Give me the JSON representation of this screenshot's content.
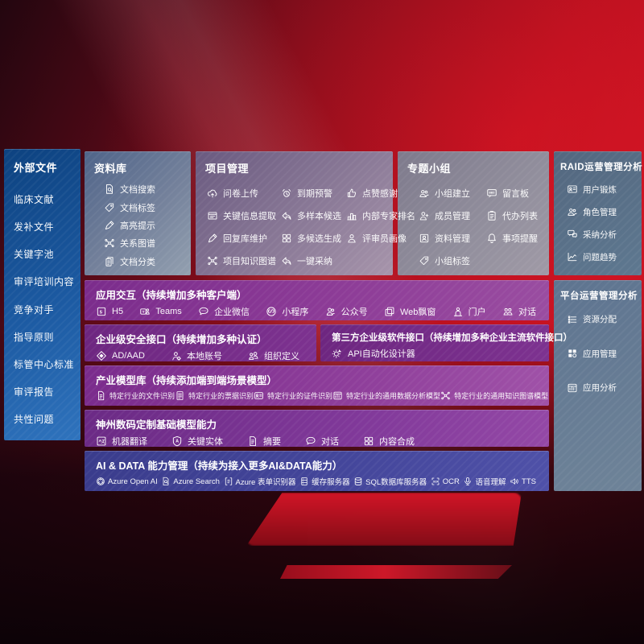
{
  "colors": {
    "background_red": "#b00f1e",
    "sidebar_blue": "#1c5aa2",
    "panel_slate": "#74819b",
    "panel_mauve": "#8d7c99",
    "panel_gray": "#928f9d",
    "panel_steel": "#5e7890",
    "row_purple": "#7b2c8c",
    "row_indigo": "#45479c",
    "text": "#ffffff"
  },
  "sidebar": {
    "title": "外部文件",
    "items": [
      "临床文献",
      "发补文件",
      "关键字池",
      "审评培训内容",
      "竞争对手",
      "指导原则",
      "标管中心标准",
      "审评报告",
      "共性问题"
    ]
  },
  "panels": {
    "repository": {
      "title": "资料库",
      "items": [
        {
          "label": "文档搜索",
          "icon": "doc-search-icon"
        },
        {
          "label": "文档标签",
          "icon": "tag-icon"
        },
        {
          "label": "高亮提示",
          "icon": "highlight-pen-icon"
        },
        {
          "label": "关系图谱",
          "icon": "knowledge-graph-icon"
        },
        {
          "label": "文档分类",
          "icon": "doc-classify-icon"
        }
      ]
    },
    "project": {
      "title": "项目管理",
      "items": [
        {
          "label": "问卷上传",
          "icon": "cloud-upload-icon"
        },
        {
          "label": "关键信息提取",
          "icon": "info-extract-icon"
        },
        {
          "label": "回复库维护",
          "icon": "reply-edit-icon"
        },
        {
          "label": "项目知识图谱",
          "icon": "knowledge-graph-icon"
        },
        {
          "label": "到期预警",
          "icon": "alarm-icon"
        },
        {
          "label": "多样本候选",
          "icon": "multi-sample-icon"
        },
        {
          "label": "多候选生成",
          "icon": "multi-generate-icon"
        },
        {
          "label": "一键采纳",
          "icon": "adopt-icon"
        },
        {
          "label": "点赞感谢",
          "icon": "thumbs-up-icon"
        },
        {
          "label": "内部专家排名",
          "icon": "expert-ranking-icon"
        },
        {
          "label": "评审员画像",
          "icon": "reviewer-profile-icon"
        }
      ]
    },
    "topic_group": {
      "title": "专题小组",
      "items": [
        {
          "label": "小组建立",
          "icon": "group-create-icon"
        },
        {
          "label": "成员管理",
          "icon": "member-manage-icon"
        },
        {
          "label": "资料管理",
          "icon": "data-album-icon"
        },
        {
          "label": "小组标签",
          "icon": "group-tag-icon"
        },
        {
          "label": "留言板",
          "icon": "bbs-icon"
        },
        {
          "label": "代办列表",
          "icon": "todo-list-icon"
        },
        {
          "label": "事项提醒",
          "icon": "reminder-bell-icon"
        }
      ]
    },
    "raid": {
      "title": "RAID运营管理分析",
      "items": [
        {
          "label": "用户锻炼",
          "icon": "user-card-icon"
        },
        {
          "label": "角色管理",
          "icon": "role-manage-icon"
        },
        {
          "label": "采纳分析",
          "icon": "adopt-analysis-icon"
        },
        {
          "label": "问题趋势",
          "icon": "trend-icon"
        }
      ]
    },
    "platform": {
      "title": "平台运营管理分析",
      "items": [
        {
          "label": "资源分配",
          "icon": "resource-allocation-icon"
        },
        {
          "label": "应用管理",
          "icon": "app-manage-icon"
        },
        {
          "label": "应用分析",
          "icon": "app-analysis-icon"
        }
      ]
    },
    "interaction": {
      "title": "应用交互（持续增加多种客户端）",
      "items": [
        {
          "label": "H5",
          "icon": "h5-icon"
        },
        {
          "label": "Teams",
          "icon": "teams-icon"
        },
        {
          "label": "企业微信",
          "icon": "wechat-work-icon"
        },
        {
          "label": "小程序",
          "icon": "miniprogram-icon"
        },
        {
          "label": "公众号",
          "icon": "official-account-icon"
        },
        {
          "label": "Web飘窗",
          "icon": "web-window-icon"
        },
        {
          "label": "门户",
          "icon": "portal-icon"
        },
        {
          "label": "对话",
          "icon": "dialog-icon"
        }
      ]
    },
    "security": {
      "title": "企业级安全接口（持续增加多种认证）",
      "items": [
        {
          "label": "AD/AAD",
          "icon": "ad-aad-icon"
        },
        {
          "label": "本地账号",
          "icon": "local-account-icon"
        },
        {
          "label": "组织定义",
          "icon": "org-define-icon"
        }
      ]
    },
    "third_party": {
      "title": "第三方企业级软件接口（持续增加多种企业主流软件接口）",
      "items": [
        {
          "label": "API自动化设计器",
          "icon": "api-designer-icon"
        }
      ]
    },
    "industry_models": {
      "title": "产业模型库（持续添加端到端场景模型）",
      "items": [
        {
          "label": "特定行业的文件识别",
          "icon": "file-recognition-icon"
        },
        {
          "label": "特定行业的票据识别",
          "icon": "receipt-recognition-icon"
        },
        {
          "label": "特定行业的证件识别",
          "icon": "id-recognition-icon"
        },
        {
          "label": "特定行业的通用数据分析模型",
          "icon": "data-analysis-model-icon"
        },
        {
          "label": "特定行业的通用知识图谱模型",
          "icon": "kg-model-icon"
        }
      ]
    },
    "base_models": {
      "title": "神州数码定制基础模型能力",
      "items": [
        {
          "label": "机器翻译",
          "icon": "machine-translation-icon"
        },
        {
          "label": "关键实体",
          "icon": "key-entity-icon"
        },
        {
          "label": "摘要",
          "icon": "summary-icon"
        },
        {
          "label": "对话",
          "icon": "chat-icon"
        },
        {
          "label": "内容合成",
          "icon": "content-compose-icon"
        }
      ]
    },
    "ai_data": {
      "title": "AI & DATA 能力管理（持续为接入更多AI&DATA能力）",
      "items": [
        {
          "label": "Azure Open AI",
          "icon": "openai-icon"
        },
        {
          "label": "Azure Search",
          "icon": "azure-search-icon"
        },
        {
          "label": "Azure 表单识别器",
          "icon": "form-recognizer-icon"
        },
        {
          "label": "缓存服务器",
          "icon": "cache-server-icon"
        },
        {
          "label": "SQL数据库服务器",
          "icon": "sql-db-icon"
        },
        {
          "label": "OCR",
          "icon": "ocr-icon"
        },
        {
          "label": "语音理解",
          "icon": "speech-icon"
        },
        {
          "label": "TTS",
          "icon": "tts-icon"
        }
      ]
    }
  }
}
